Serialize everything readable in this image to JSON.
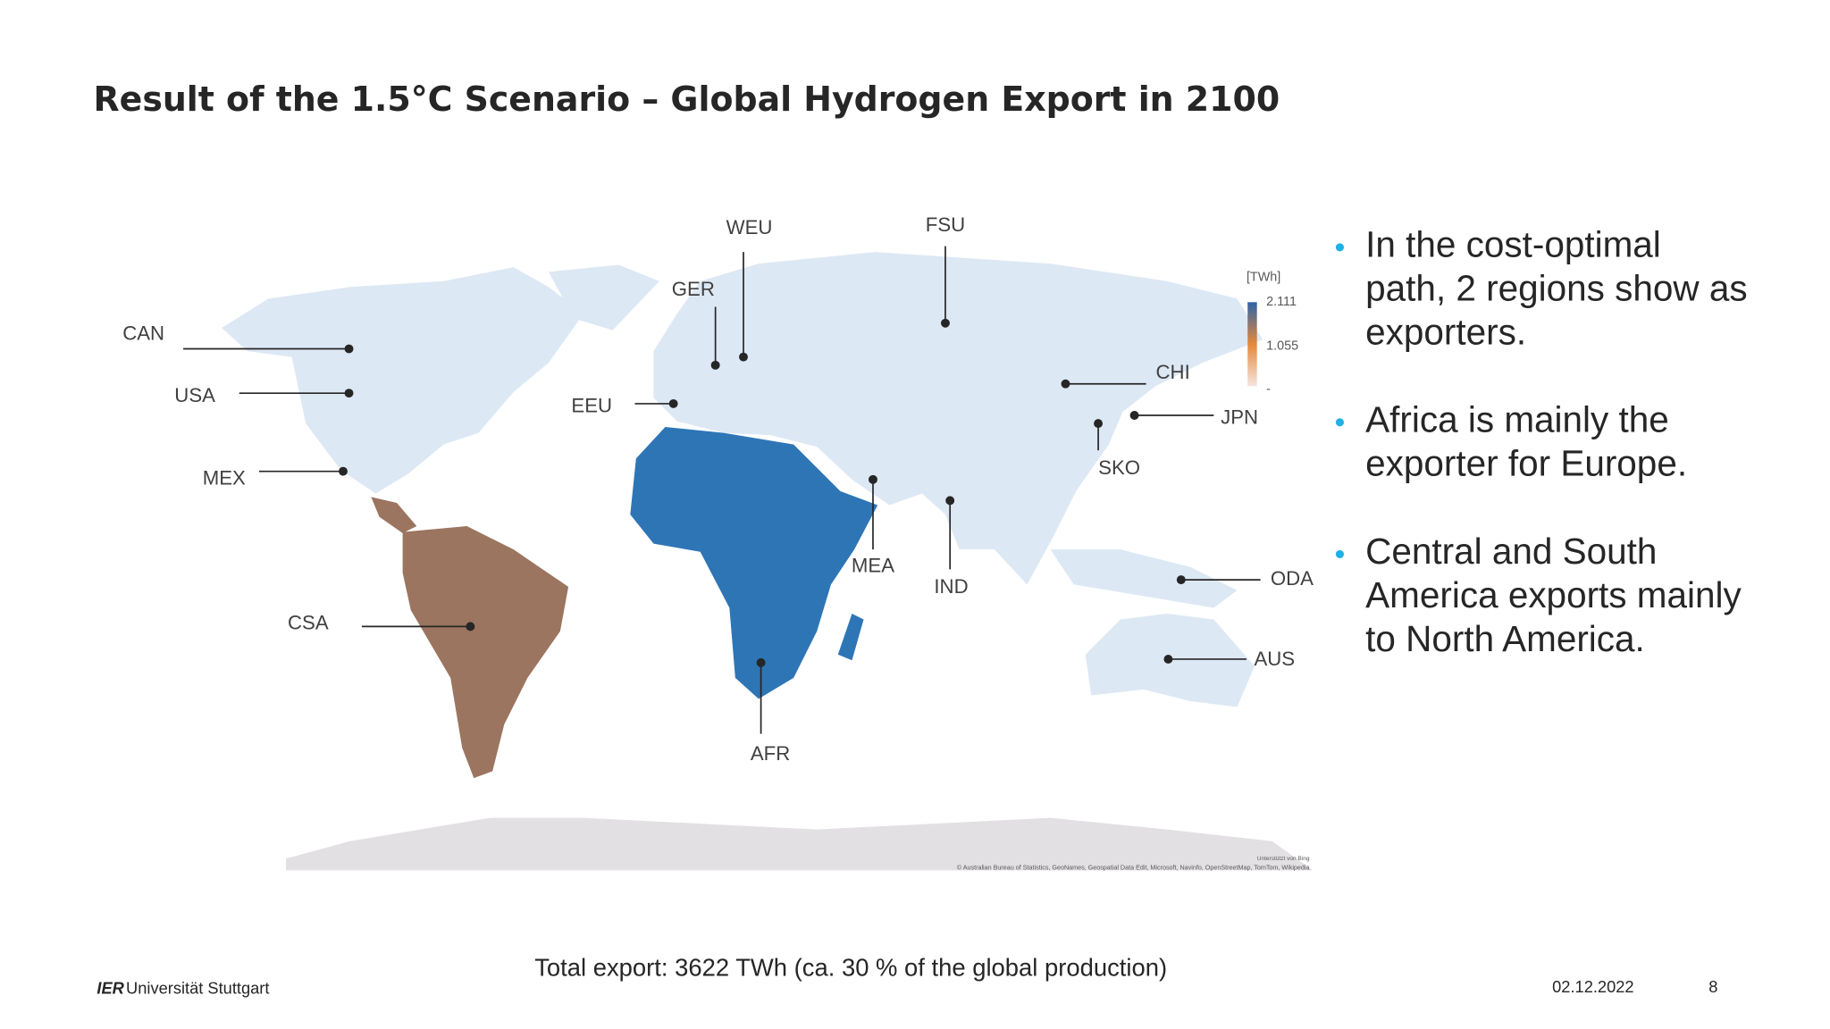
{
  "header": {
    "title": "Result of the 1.5°C  Scenario  – Global Hydrogen Export in 2100"
  },
  "map": {
    "regions": [
      "CAN",
      "USA",
      "MEX",
      "CSA",
      "EEU",
      "GER",
      "WEU",
      "FSU",
      "CHI",
      "JPN",
      "SKO",
      "MEA",
      "IND",
      "ODA",
      "AUS",
      "AFR"
    ],
    "legend": {
      "unit": "[TWh]",
      "labels": [
        "2.111",
        "1.055",
        "-"
      ]
    },
    "attribution": [
      "Unterstützt von Bing",
      "© Australian Bureau of Statistics, GeoNames, Geospatial Data Edit, Microsoft, Navinfo, OpenStreetMap, TomTom, Wikipedia"
    ]
  },
  "bullets": [
    [
      "In the cost-optimal",
      "path, 2 regions show as",
      "exporters."
    ],
    [
      "Africa is mainly the",
      "exporter for Europe."
    ],
    [
      "Central and South",
      "America exports mainly",
      "to North America."
    ]
  ],
  "note": "Total export: 3622 TWh (ca. 30 % of the global production)",
  "footer": {
    "institute": "IER",
    "university": "Universität Stuttgart",
    "date": "02.12.2022",
    "page": "8"
  }
}
